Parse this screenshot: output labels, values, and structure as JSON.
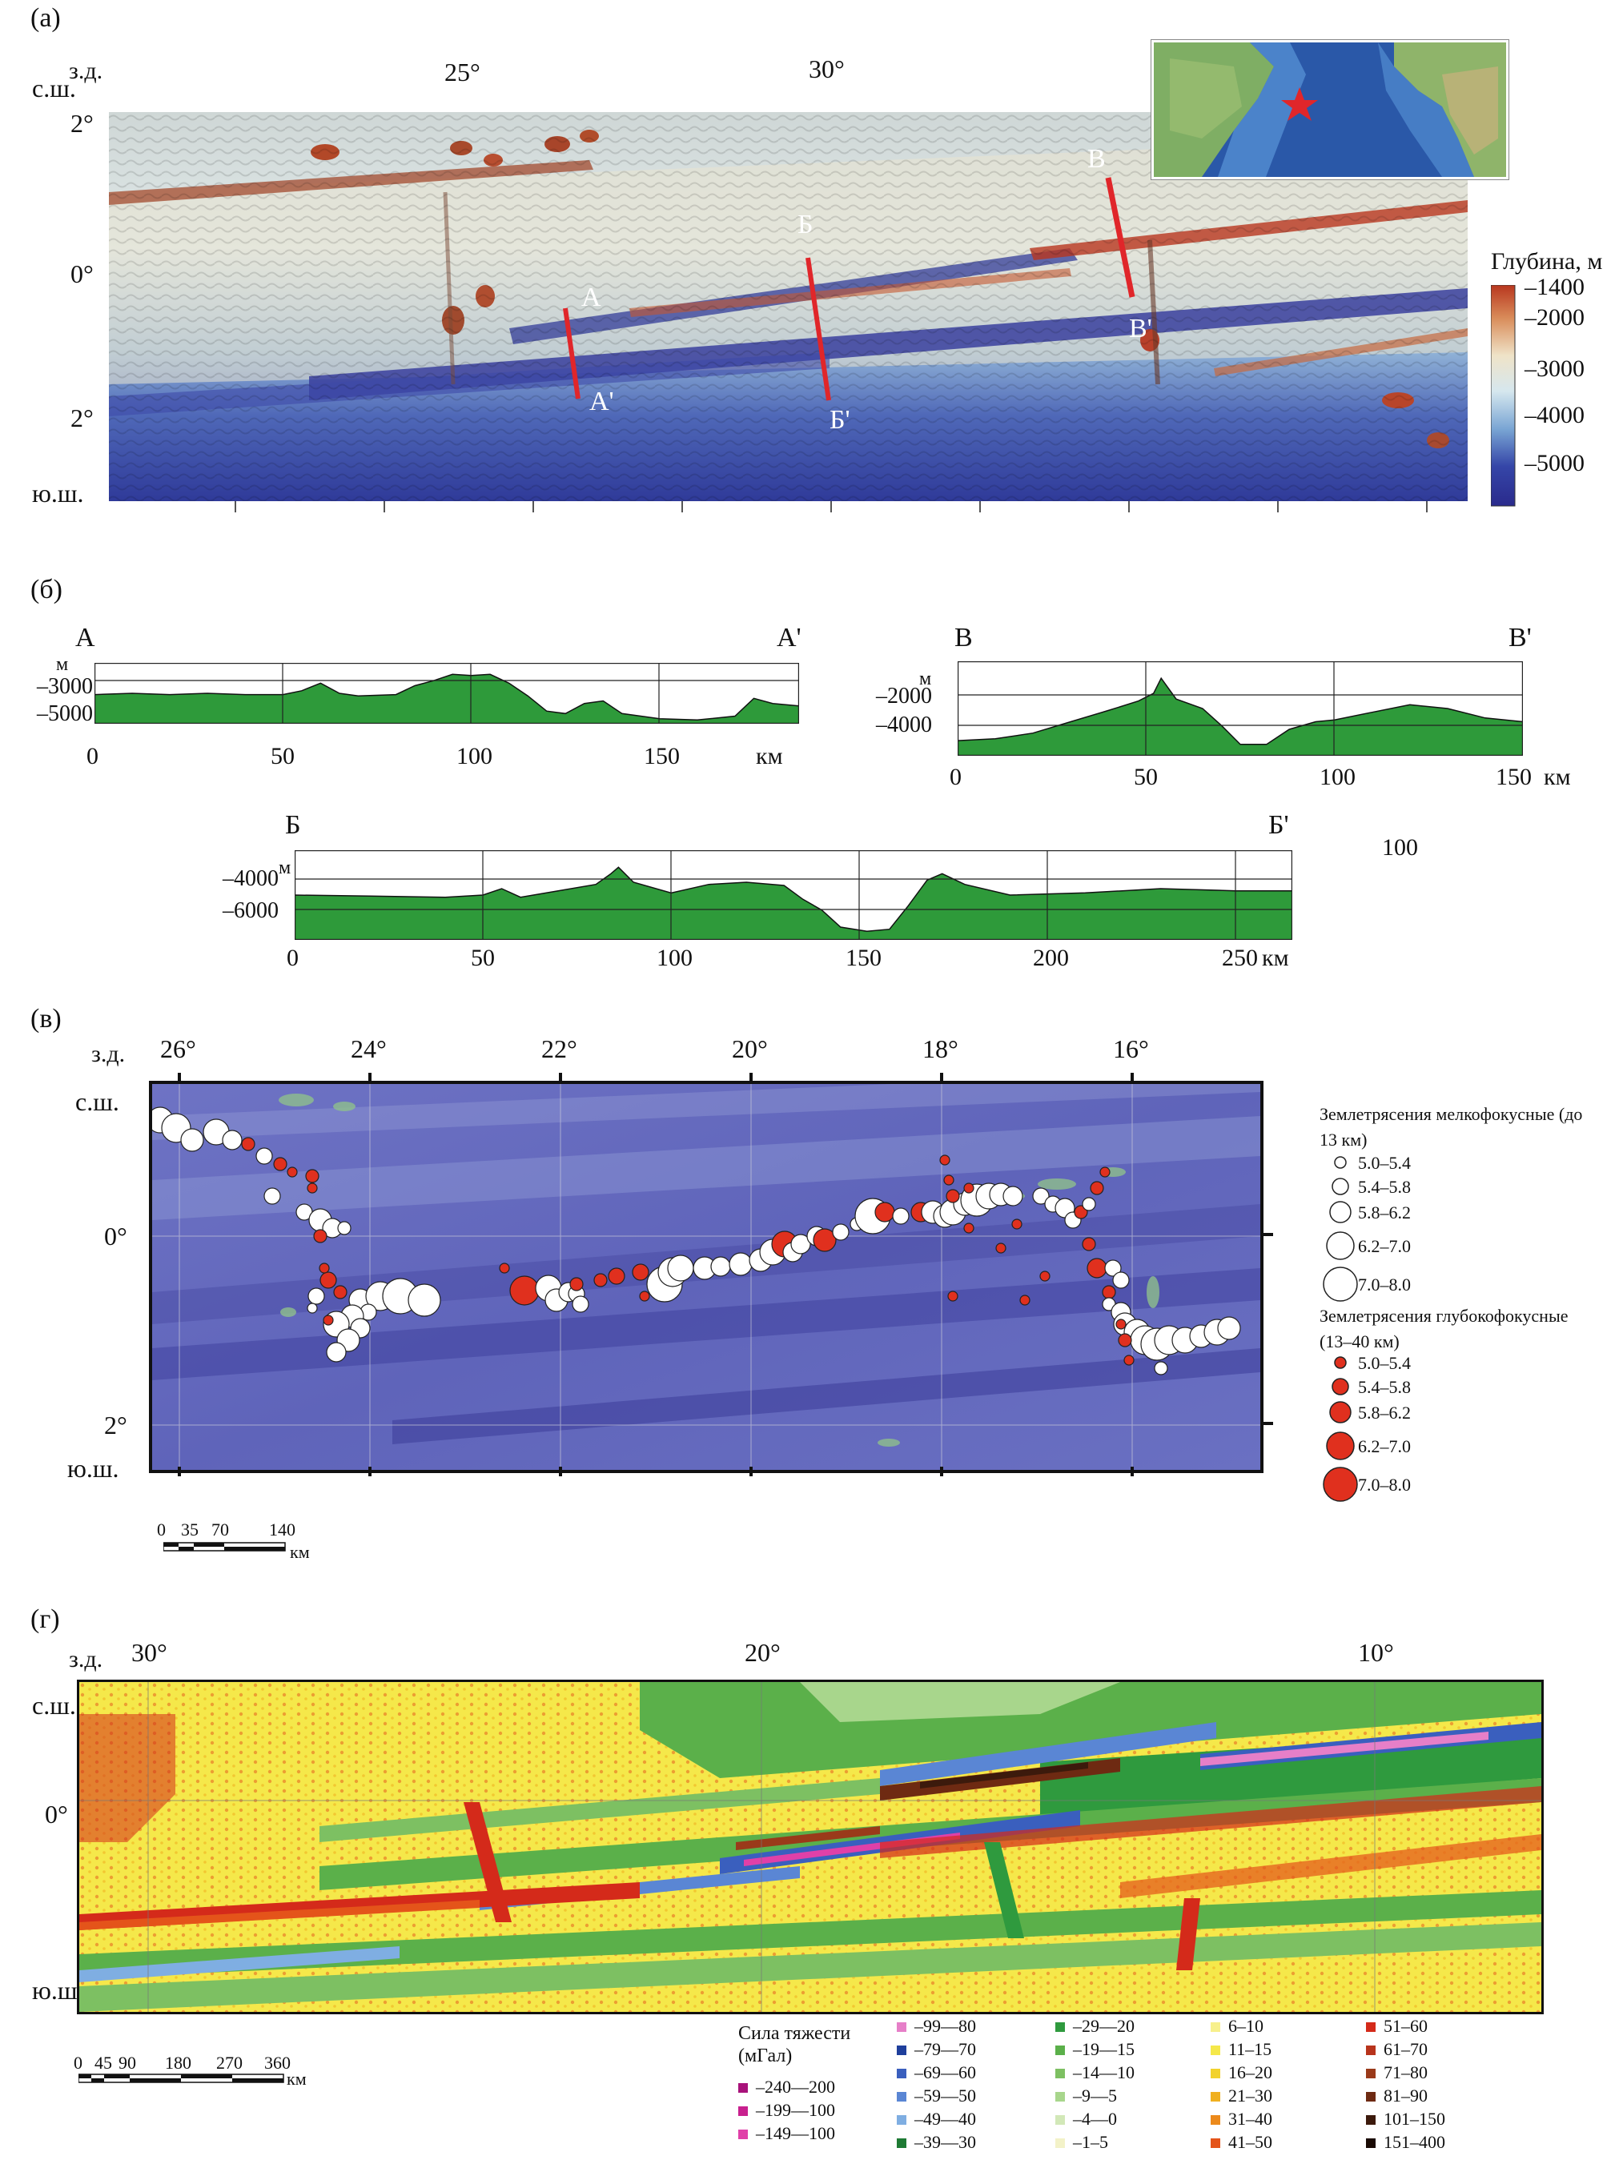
{
  "panels": {
    "a": {
      "letter": "(а)",
      "hemi_w": "з.д.",
      "hemi_n": "с.ш.",
      "hemi_s": "ю.ш.",
      "lon_ticks": [
        "25°",
        "30°"
      ],
      "lat_ticks": [
        "2°",
        "0°",
        "2°"
      ],
      "profile_labels": [
        "А",
        "А'",
        "Б",
        "Б'",
        "В",
        "В'"
      ],
      "depth_scale": {
        "title": "Глубина, м",
        "ticks": [
          "–1400",
          "–2000",
          "–3000",
          "–4000",
          "–5000"
        ],
        "colors": [
          "#b8361e",
          "#d98c5a",
          "#efe3c8",
          "#d6e7ee",
          "#7aa6d4",
          "#3546a8",
          "#2a2a8c"
        ]
      },
      "inset_marker_color": "#e0262a"
    },
    "b": {
      "letter": "(б)",
      "fill_color": "#2e9a3a",
      "profile_A": {
        "start": "А",
        "end": "А'",
        "unit_y": "м",
        "y_ticks": [
          "–3000",
          "–5000"
        ],
        "x_ticks": [
          "0",
          "50",
          "100",
          "150"
        ],
        "unit_x": "км",
        "x_max": 187,
        "depth": [
          [
            0,
            -3450
          ],
          [
            10,
            -3400
          ],
          [
            20,
            -3450
          ],
          [
            30,
            -3400
          ],
          [
            40,
            -3450
          ],
          [
            50,
            -3450
          ],
          [
            55,
            -3300
          ],
          [
            60,
            -3000
          ],
          [
            65,
            -3400
          ],
          [
            70,
            -3500
          ],
          [
            80,
            -3450
          ],
          [
            85,
            -3100
          ],
          [
            90,
            -2900
          ],
          [
            95,
            -2650
          ],
          [
            100,
            -2700
          ],
          [
            105,
            -2650
          ],
          [
            110,
            -3000
          ],
          [
            115,
            -3500
          ],
          [
            120,
            -4100
          ],
          [
            125,
            -4200
          ],
          [
            130,
            -3800
          ],
          [
            135,
            -3700
          ],
          [
            140,
            -4200
          ],
          [
            150,
            -4400
          ],
          [
            160,
            -4450
          ],
          [
            170,
            -4300
          ],
          [
            175,
            -3600
          ],
          [
            180,
            -3800
          ],
          [
            187,
            -3900
          ]
        ]
      },
      "profile_V": {
        "start": "В",
        "end": "В'",
        "unit_y": "м",
        "y_ticks": [
          "–2000",
          "–4000"
        ],
        "x_ticks": [
          "0",
          "50",
          "100",
          "150"
        ],
        "unit_x": "км",
        "x_max": 150,
        "depth": [
          [
            0,
            -4800
          ],
          [
            10,
            -4700
          ],
          [
            20,
            -4400
          ],
          [
            30,
            -3800
          ],
          [
            40,
            -3200
          ],
          [
            48,
            -2700
          ],
          [
            52,
            -2300
          ],
          [
            54,
            -1500
          ],
          [
            58,
            -2600
          ],
          [
            65,
            -3100
          ],
          [
            70,
            -4000
          ],
          [
            75,
            -5000
          ],
          [
            82,
            -5000
          ],
          [
            88,
            -4200
          ],
          [
            95,
            -3800
          ],
          [
            100,
            -3700
          ],
          [
            110,
            -3300
          ],
          [
            120,
            -2900
          ],
          [
            130,
            -3100
          ],
          [
            140,
            -3600
          ],
          [
            150,
            -3800
          ]
        ]
      },
      "profile_B": {
        "start": "Б",
        "end": "Б'",
        "unit_y": "м",
        "y_ticks": [
          "–4000",
          "–6000"
        ],
        "x_ticks": [
          "0",
          "50",
          "100",
          "150",
          "200",
          "250"
        ],
        "unit_x": "км",
        "x_max": 265,
        "depth": [
          [
            0,
            -4900
          ],
          [
            20,
            -4950
          ],
          [
            40,
            -5000
          ],
          [
            50,
            -4900
          ],
          [
            55,
            -4600
          ],
          [
            60,
            -5000
          ],
          [
            70,
            -4700
          ],
          [
            80,
            -4400
          ],
          [
            84,
            -3900
          ],
          [
            86,
            -3600
          ],
          [
            90,
            -4300
          ],
          [
            100,
            -4800
          ],
          [
            110,
            -4400
          ],
          [
            120,
            -4300
          ],
          [
            130,
            -4450
          ],
          [
            135,
            -5100
          ],
          [
            140,
            -5600
          ],
          [
            145,
            -6400
          ],
          [
            152,
            -6600
          ],
          [
            158,
            -6500
          ],
          [
            163,
            -5400
          ],
          [
            168,
            -4200
          ],
          [
            172,
            -3900
          ],
          [
            178,
            -4400
          ],
          [
            190,
            -4900
          ],
          [
            210,
            -4800
          ],
          [
            230,
            -4600
          ],
          [
            250,
            -4700
          ],
          [
            265,
            -4700
          ]
        ]
      },
      "stray_label": "100"
    },
    "c": {
      "letter": "(в)",
      "hemi_w": "з.д.",
      "hemi_n": "с.ш.",
      "hemi_s": "ю.ш.",
      "lon_ticks": [
        "26°",
        "24°",
        "22°",
        "20°",
        "18°",
        "16°"
      ],
      "lat_ticks": [
        "0°",
        "2°"
      ],
      "scale_ticks": [
        "0",
        "35",
        "70",
        "140"
      ],
      "scale_unit": "км",
      "legend_shallow_title": "Землетрясения мелкофокусные (до 13 км)",
      "legend_deep_title": "Землетрясения глубокофокусные (13–40 км)",
      "magnitude_classes": [
        "5.0–5.4",
        "5.4–5.8",
        "5.8–6.2",
        "6.2–7.0",
        "7.0–8.0"
      ],
      "shallow_color": "#ffffff",
      "deep_color": "#e0301e",
      "background_color": "#5d62b9"
    },
    "d": {
      "letter": "(г)",
      "hemi_w": "з.д.",
      "hemi_n": "с.ш.",
      "hemi_s": "ю.ш.",
      "lon_ticks": [
        "30°",
        "20°",
        "10°"
      ],
      "lat_ticks": [
        "0°"
      ],
      "scale_ticks": [
        "0",
        "45",
        "90",
        "180",
        "270",
        "360"
      ],
      "scale_unit": "км",
      "gravity_title_1": "Сила тяжести",
      "gravity_title_2": "(мГал)",
      "gravity_legend": [
        {
          "label": "–240––200",
          "color": "#a8127a"
        },
        {
          "label": "–199––100",
          "color": "#c8208e"
        },
        {
          "label": "–149––100",
          "color": "#e040a8"
        },
        {
          "label": "–99––80",
          "color": "#e67fc8"
        },
        {
          "label": "–79––70",
          "color": "#1f3f9c"
        },
        {
          "label": "–69––60",
          "color": "#3a5fbe"
        },
        {
          "label": "–59––50",
          "color": "#5a86d4"
        },
        {
          "label": "–49––40",
          "color": "#7faee2"
        },
        {
          "label": "–39––30",
          "color": "#1e7a34"
        },
        {
          "label": "–29––20",
          "color": "#2f9a3e"
        },
        {
          "label": "–19––15",
          "color": "#5bb04a"
        },
        {
          "label": "–14––10",
          "color": "#7dc062"
        },
        {
          "label": "–9––5",
          "color": "#a8d68c"
        },
        {
          "label": "–4––0",
          "color": "#d2e8b8"
        },
        {
          "label": "–1–5",
          "color": "#f3f2c8"
        },
        {
          "label": "6–10",
          "color": "#f7f08c"
        },
        {
          "label": "11–15",
          "color": "#f5e84a"
        },
        {
          "label": "16–20",
          "color": "#f2d22c"
        },
        {
          "label": "21–30",
          "color": "#f0b020"
        },
        {
          "label": "31–40",
          "color": "#ec8a1c"
        },
        {
          "label": "41–50",
          "color": "#e4541a"
        },
        {
          "label": "51–60",
          "color": "#d42a1a"
        },
        {
          "label": "61–70",
          "color": "#b8341c"
        },
        {
          "label": "71–80",
          "color": "#9a3a1a"
        },
        {
          "label": "81–90",
          "color": "#6e2a12"
        },
        {
          "label": "101–150",
          "color": "#3c1a0c"
        },
        {
          "label": "151–400",
          "color": "#1a0a04"
        }
      ]
    }
  }
}
